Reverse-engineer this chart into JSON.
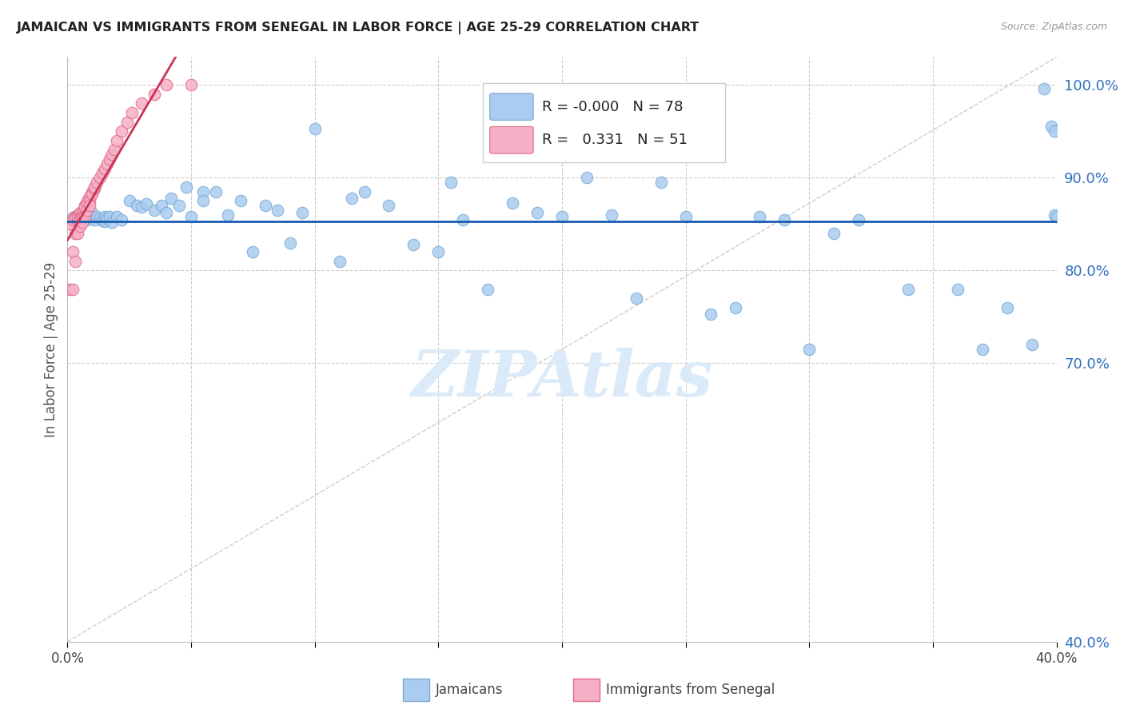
{
  "title": "JAMAICAN VS IMMIGRANTS FROM SENEGAL IN LABOR FORCE | AGE 25-29 CORRELATION CHART",
  "source": "Source: ZipAtlas.com",
  "ylabel": "In Labor Force | Age 25-29",
  "xlim": [
    0.0,
    0.4
  ],
  "ylim": [
    0.4,
    1.03
  ],
  "blue_R": "-0.000",
  "blue_N": "78",
  "pink_R": "0.331",
  "pink_N": "51",
  "blue_color": "#aaccf0",
  "blue_edge": "#7aaad4",
  "pink_color": "#f5b0c5",
  "pink_edge": "#e06888",
  "blue_line_color": "#1a5cb0",
  "pink_line_color": "#cc3355",
  "title_color": "#222222",
  "source_color": "#999999",
  "axis_label_color": "#555555",
  "right_tick_color": "#3070c0",
  "grid_color": "#cccccc",
  "watermark_color": "#daeaf8",
  "blue_scatter_x": [
    0.002,
    0.003,
    0.004,
    0.005,
    0.006,
    0.007,
    0.008,
    0.008,
    0.009,
    0.01,
    0.01,
    0.011,
    0.012,
    0.013,
    0.014,
    0.015,
    0.015,
    0.016,
    0.017,
    0.018,
    0.02,
    0.022,
    0.025,
    0.028,
    0.03,
    0.032,
    0.035,
    0.038,
    0.04,
    0.042,
    0.045,
    0.048,
    0.05,
    0.055,
    0.055,
    0.06,
    0.065,
    0.07,
    0.075,
    0.08,
    0.085,
    0.09,
    0.095,
    0.1,
    0.11,
    0.115,
    0.12,
    0.13,
    0.14,
    0.15,
    0.155,
    0.16,
    0.17,
    0.18,
    0.19,
    0.2,
    0.21,
    0.22,
    0.23,
    0.24,
    0.25,
    0.26,
    0.27,
    0.28,
    0.29,
    0.3,
    0.31,
    0.32,
    0.34,
    0.36,
    0.37,
    0.38,
    0.39,
    0.395,
    0.398,
    0.399,
    0.399,
    0.4
  ],
  "blue_scatter_y": [
    0.857,
    0.855,
    0.852,
    0.86,
    0.858,
    0.862,
    0.855,
    0.86,
    0.858,
    0.856,
    0.862,
    0.855,
    0.858,
    0.856,
    0.854,
    0.858,
    0.853,
    0.856,
    0.858,
    0.852,
    0.858,
    0.855,
    0.875,
    0.87,
    0.868,
    0.872,
    0.865,
    0.87,
    0.862,
    0.878,
    0.87,
    0.89,
    0.858,
    0.885,
    0.875,
    0.885,
    0.86,
    0.875,
    0.82,
    0.87,
    0.865,
    0.83,
    0.862,
    0.953,
    0.81,
    0.878,
    0.885,
    0.87,
    0.828,
    0.82,
    0.895,
    0.855,
    0.78,
    0.873,
    0.862,
    0.858,
    0.9,
    0.86,
    0.77,
    0.895,
    0.858,
    0.753,
    0.76,
    0.858,
    0.855,
    0.715,
    0.84,
    0.855,
    0.78,
    0.78,
    0.715,
    0.76,
    0.72,
    0.996,
    0.955,
    0.86,
    0.95,
    0.858
  ],
  "pink_scatter_x": [
    0.001,
    0.001,
    0.002,
    0.002,
    0.002,
    0.003,
    0.003,
    0.003,
    0.003,
    0.004,
    0.004,
    0.004,
    0.004,
    0.005,
    0.005,
    0.005,
    0.005,
    0.005,
    0.006,
    0.006,
    0.006,
    0.006,
    0.007,
    0.007,
    0.007,
    0.008,
    0.008,
    0.008,
    0.009,
    0.009,
    0.009,
    0.01,
    0.01,
    0.011,
    0.011,
    0.012,
    0.013,
    0.014,
    0.015,
    0.016,
    0.017,
    0.018,
    0.019,
    0.02,
    0.022,
    0.024,
    0.026,
    0.03,
    0.035,
    0.04,
    0.05
  ],
  "pink_scatter_y": [
    0.78,
    0.85,
    0.82,
    0.855,
    0.78,
    0.84,
    0.858,
    0.856,
    0.81,
    0.86,
    0.855,
    0.858,
    0.84,
    0.862,
    0.858,
    0.856,
    0.854,
    0.848,
    0.862,
    0.858,
    0.856,
    0.852,
    0.87,
    0.868,
    0.858,
    0.875,
    0.872,
    0.865,
    0.88,
    0.875,
    0.87,
    0.885,
    0.882,
    0.888,
    0.89,
    0.895,
    0.9,
    0.905,
    0.91,
    0.915,
    0.92,
    0.925,
    0.93,
    0.94,
    0.95,
    0.96,
    0.97,
    0.98,
    0.99,
    1.0,
    1.0
  ]
}
